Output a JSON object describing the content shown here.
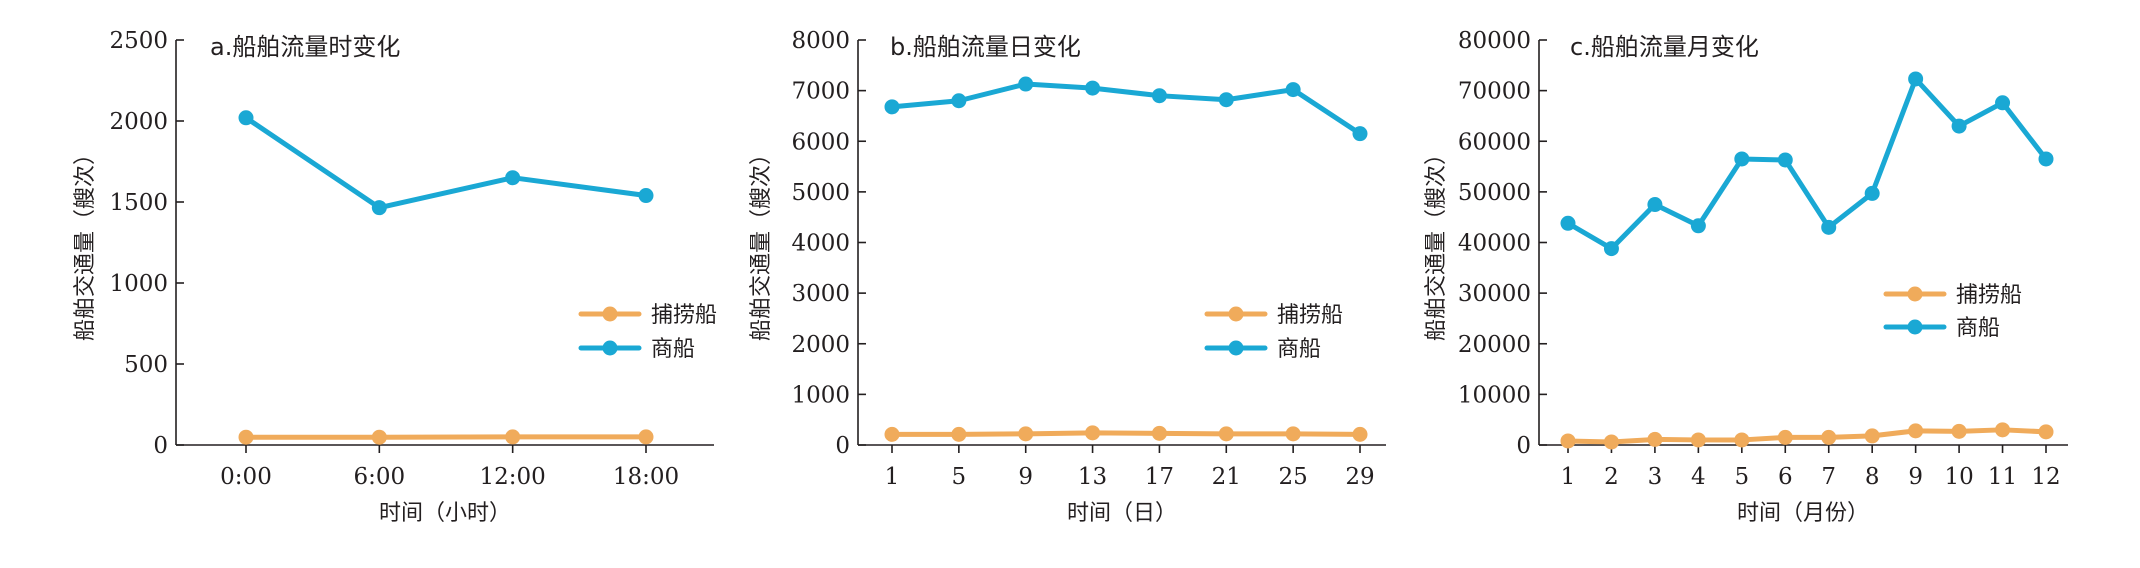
{
  "colors": {
    "fishing": "#f0ab5b",
    "merchant": "#1aa8d4",
    "axis": "#231f20"
  },
  "legend_labels": [
    "捕捞船",
    "商船"
  ],
  "chart_data": [
    {
      "type": "line",
      "title": "a.船舶流量时变化",
      "xlabel": "时间（小时）",
      "ylabel": "船舶交通量（艘次）",
      "ylim": [
        0,
        2500
      ],
      "yticks": [
        0,
        500,
        1000,
        1500,
        2000,
        2500
      ],
      "categories": [
        "0:00",
        "6:00",
        "12:00",
        "18:00"
      ],
      "legend_position": "middle-right",
      "series": [
        {
          "name": "捕捞船",
          "values": [
            48,
            48,
            50,
            50
          ]
        },
        {
          "name": "商船",
          "values": [
            2020,
            1465,
            1650,
            1540
          ]
        }
      ]
    },
    {
      "type": "line",
      "title": "b.船舶流量日变化",
      "xlabel": "时间（日）",
      "ylabel": "船舶交通量（艘次）",
      "ylim": [
        0,
        8000
      ],
      "yticks": [
        0,
        1000,
        2000,
        3000,
        4000,
        5000,
        6000,
        7000,
        8000
      ],
      "categories": [
        "1",
        "5",
        "9",
        "13",
        "17",
        "21",
        "25",
        "29"
      ],
      "legend_position": "middle-right",
      "series": [
        {
          "name": "捕捞船",
          "values": [
            210,
            210,
            220,
            240,
            230,
            220,
            220,
            210
          ]
        },
        {
          "name": "商船",
          "values": [
            6680,
            6800,
            7130,
            7050,
            6900,
            6820,
            7020,
            6150
          ]
        }
      ]
    },
    {
      "type": "line",
      "title": "c.船舶流量月变化",
      "xlabel": "时间（月份）",
      "ylabel": "船舶交通量（艘次）",
      "ylim": [
        0,
        80000
      ],
      "yticks": [
        0,
        10000,
        20000,
        30000,
        40000,
        50000,
        60000,
        70000,
        80000
      ],
      "categories": [
        "1",
        "2",
        "3",
        "4",
        "5",
        "6",
        "7",
        "8",
        "9",
        "10",
        "11",
        "12"
      ],
      "legend_position": "middle-right",
      "series": [
        {
          "name": "捕捞船",
          "values": [
            800,
            600,
            1100,
            1000,
            1000,
            1500,
            1500,
            1800,
            2800,
            2700,
            3000,
            2600
          ]
        },
        {
          "name": "商船",
          "values": [
            43800,
            38800,
            47500,
            43300,
            56500,
            56300,
            43000,
            49700,
            72300,
            63000,
            67600,
            56500
          ]
        }
      ]
    }
  ]
}
